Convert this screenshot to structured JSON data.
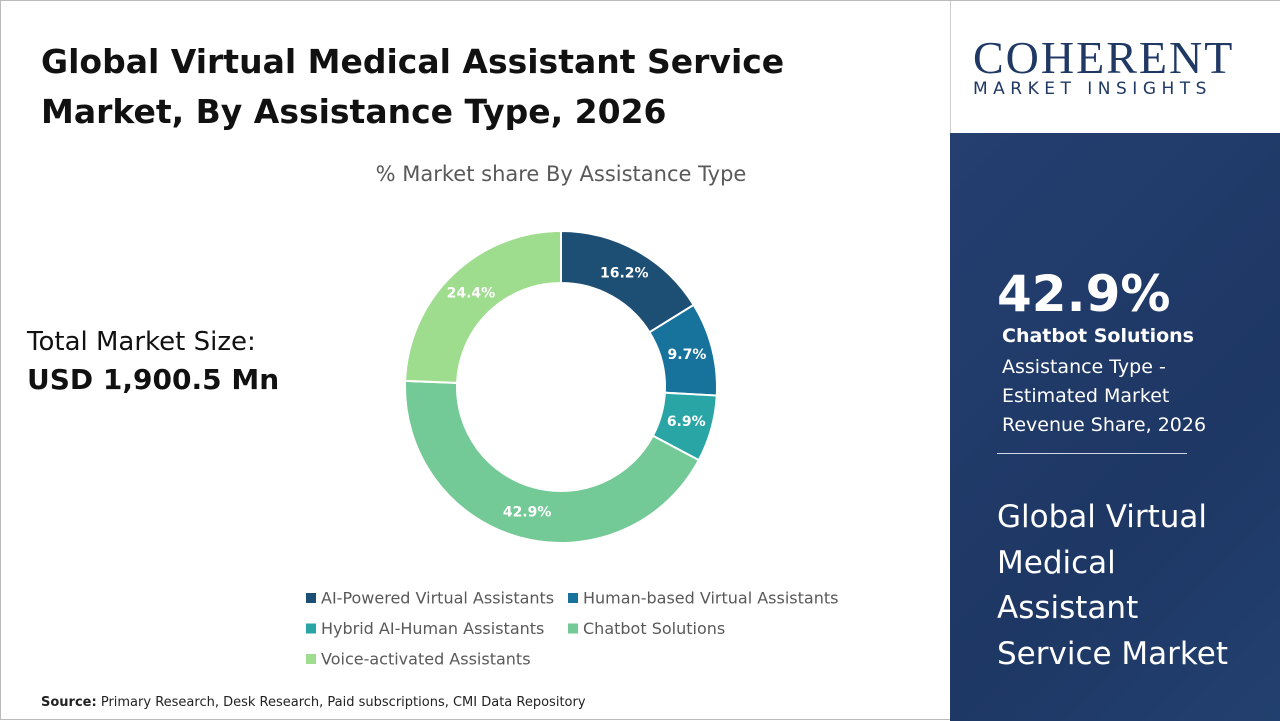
{
  "title": "Global Virtual Medical Assistant Service Market, By Assistance Type, 2026",
  "market_size": {
    "label": "Total Market Size:",
    "value": "USD 1,900.5 Mn"
  },
  "logo": {
    "name": "COHERENT",
    "tagline": "MARKET INSIGHTS"
  },
  "highlight": {
    "value": "42.9%",
    "segment": "Chatbot Solutions",
    "description": "Assistance Type - Estimated Market Revenue Share, 2026"
  },
  "sidebar_title": "Global Virtual Medical Assistant Service Market",
  "source": {
    "label": "Source:",
    "text": "Primary Research, Desk Research, Paid subscriptions, CMI Data Repository"
  },
  "chart_data": {
    "type": "donut",
    "title": "% Market share By Assistance Type",
    "categories": [
      "AI-Powered Virtual Assistants",
      "Human-based Virtual Assistants",
      "Hybrid AI-Human Assistants",
      "Chatbot Solutions",
      "Voice-activated Assistants"
    ],
    "values": [
      16.2,
      9.7,
      6.9,
      42.9,
      24.4
    ],
    "value_labels": [
      "16.2%",
      "9.7%",
      "6.9%",
      "42.9%",
      "24.4%"
    ],
    "colors": [
      "#1d4e74",
      "#17729c",
      "#2aa5a5",
      "#74ca96",
      "#9edc8e"
    ]
  }
}
